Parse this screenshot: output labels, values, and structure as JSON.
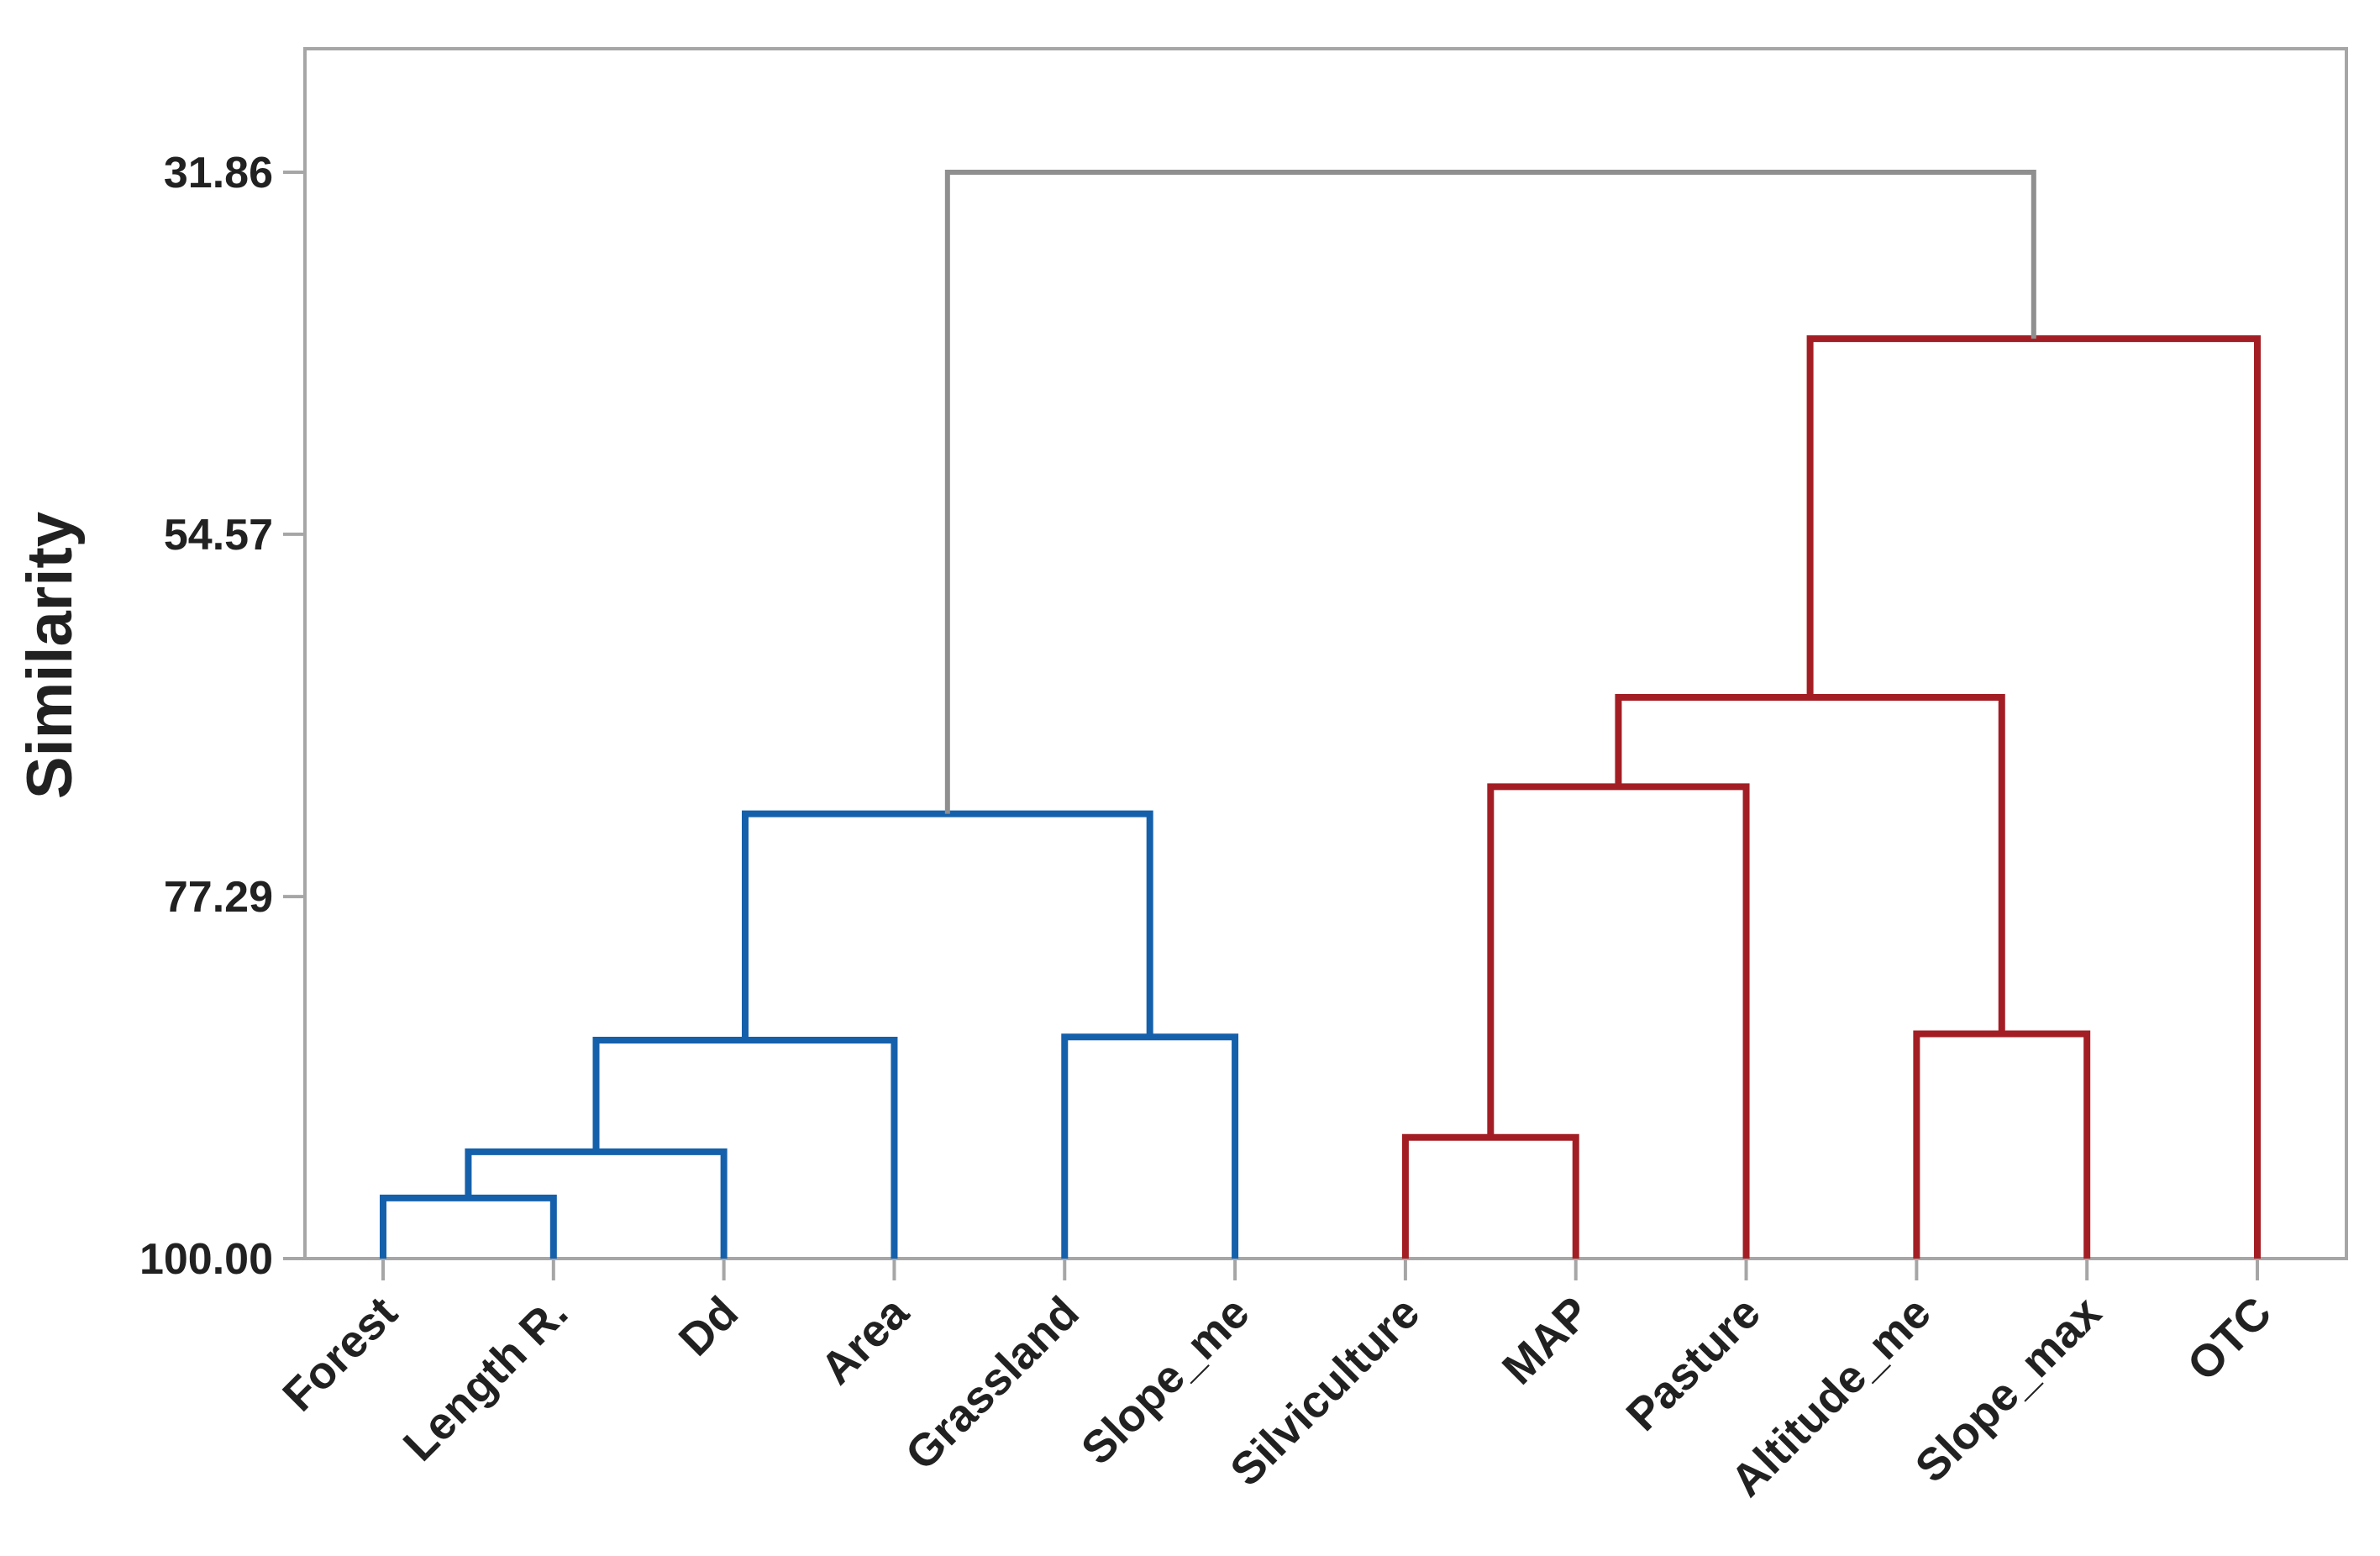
{
  "page": {
    "background": "#ffffff"
  },
  "chart_data": {
    "type": "dendrogram",
    "title": "",
    "ylabel": "Similarity",
    "xlabel": "",
    "orientation": "vertical-leaves-bottom",
    "grid": "off",
    "legend": null,
    "y_axis_direction": "similarity decreases upward",
    "y_ticks": [
      31.86,
      54.57,
      77.29,
      100.0
    ],
    "y_tick_labels": [
      "31.86",
      "54.57",
      "77.29",
      "100.00"
    ],
    "leaves": [
      "Forest",
      "Length R.",
      "Dd",
      "Area",
      "Grassland",
      "Slope_me",
      "Silviculture",
      "MAP",
      "Pasture",
      "Altitude_me",
      "Slope_max",
      "OTC"
    ],
    "clusters": {
      "blue": [
        "Forest",
        "Length R.",
        "Dd",
        "Area",
        "Grassland",
        "Slope_me"
      ],
      "red": [
        "Silviculture",
        "MAP",
        "Pasture",
        "Altitude_me",
        "Slope_max",
        "OTC"
      ],
      "root": "gray"
    },
    "merges": [
      {
        "a": 0,
        "b": 1,
        "similarity": 96.2,
        "group": "blue"
      },
      {
        "a": 12,
        "b": 2,
        "similarity": 93.3,
        "group": "blue"
      },
      {
        "a": 13,
        "b": 3,
        "similarity": 86.3,
        "group": "blue"
      },
      {
        "a": 4,
        "b": 5,
        "similarity": 86.1,
        "group": "blue"
      },
      {
        "a": 14,
        "b": 15,
        "similarity": 72.1,
        "group": "blue"
      },
      {
        "a": 6,
        "b": 7,
        "similarity": 92.4,
        "group": "red"
      },
      {
        "a": 17,
        "b": 8,
        "similarity": 70.4,
        "group": "red"
      },
      {
        "a": 9,
        "b": 10,
        "similarity": 85.9,
        "group": "red"
      },
      {
        "a": 18,
        "b": 19,
        "similarity": 64.8,
        "group": "red"
      },
      {
        "a": 20,
        "b": 11,
        "similarity": 42.3,
        "group": "red"
      },
      {
        "a": 16,
        "b": 21,
        "similarity": 31.86,
        "group": "gray"
      }
    ],
    "colors": {
      "blue": "#1560ab",
      "red": "#a31e24",
      "gray": "#8f8f8f",
      "frame": "#a6a6a6",
      "text": "#212121"
    }
  }
}
